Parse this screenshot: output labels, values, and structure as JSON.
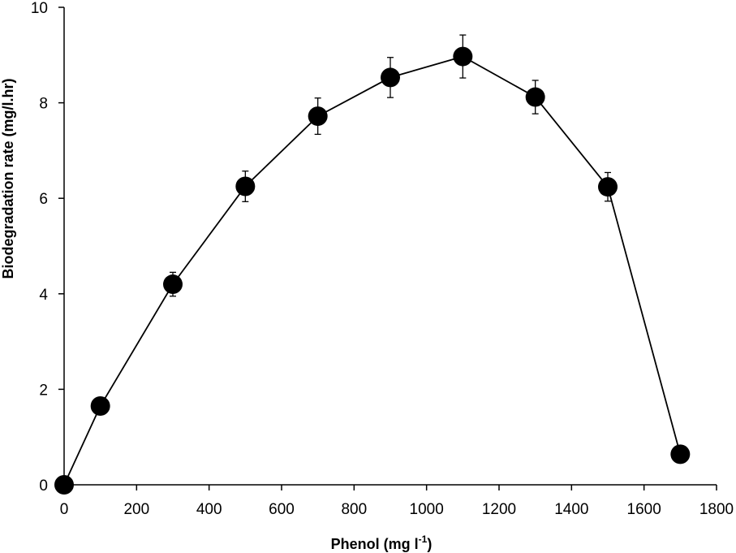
{
  "chart_data": {
    "type": "scatter",
    "title": "",
    "xlabel": "Phenol (mg l",
    "xlabel_superscript": "-1",
    "xlabel_suffix": ")",
    "ylabel": "Biodegradation rate (mg/l.hr)",
    "xlim": [
      0,
      1800
    ],
    "ylim": [
      0,
      10
    ],
    "xticks": [
      0,
      200,
      400,
      600,
      800,
      1000,
      1200,
      1400,
      1600,
      1800
    ],
    "yticks": [
      0,
      2,
      4,
      6,
      8,
      10
    ],
    "grid": false,
    "legend": "none",
    "marker": "filled-circle",
    "line": "solid",
    "color": "#000000",
    "series": [
      {
        "x": [
          0,
          100,
          300,
          500,
          700,
          900,
          1100,
          1300,
          1500,
          1700
        ],
        "y": [
          0.0,
          1.65,
          4.2,
          6.25,
          7.72,
          8.53,
          8.97,
          8.12,
          6.24,
          0.64
        ],
        "yerr": [
          0,
          0,
          0.25,
          0.32,
          0.38,
          0.42,
          0.45,
          0.35,
          0.3,
          0
        ]
      }
    ]
  }
}
